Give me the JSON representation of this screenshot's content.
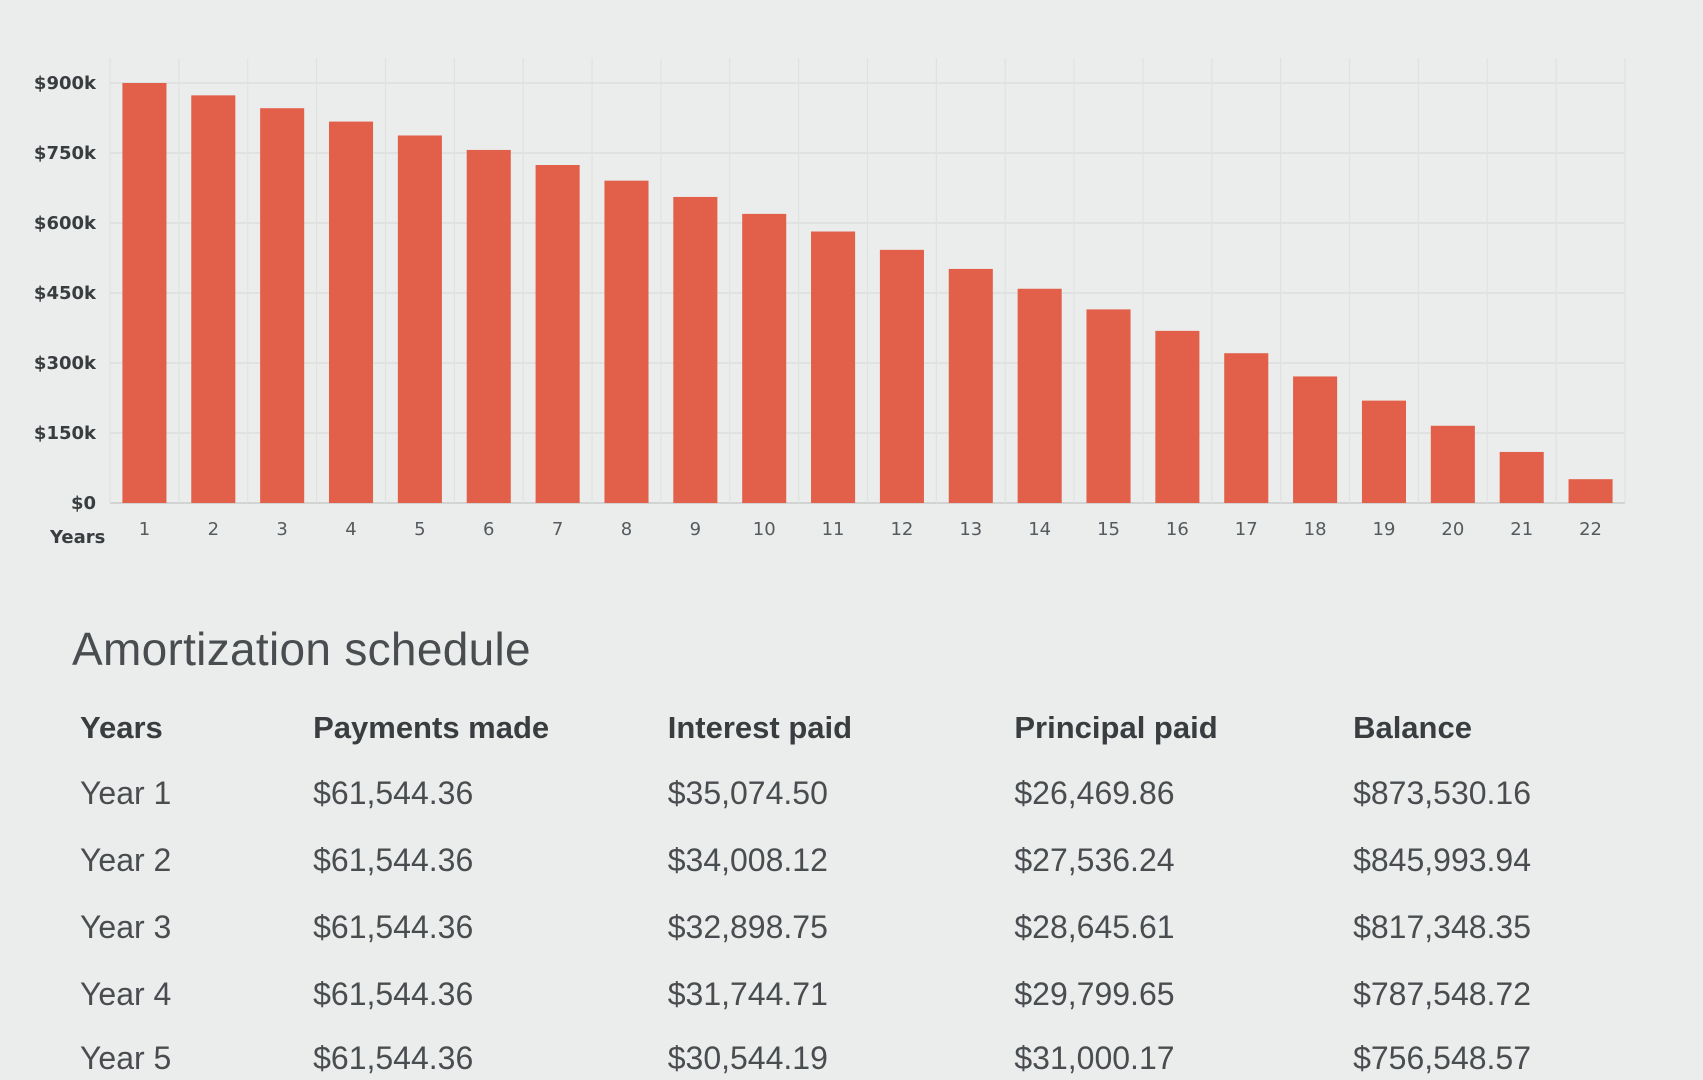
{
  "chart_data": {
    "type": "bar",
    "xlabel": "Years",
    "categories": [
      "1",
      "2",
      "3",
      "4",
      "5",
      "6",
      "7",
      "8",
      "9",
      "10",
      "11",
      "12",
      "13",
      "14",
      "15",
      "16",
      "17",
      "18",
      "19",
      "20",
      "21",
      "22"
    ],
    "values": [
      900000,
      873530,
      845994,
      817348,
      787549,
      756549,
      724300,
      690750,
      655850,
      619550,
      581780,
      542490,
      501620,
      459100,
      414870,
      368850,
      320980,
      271180,
      219370,
      165470,
      109400,
      51070
    ],
    "yticks": [
      "$0",
      "$150k",
      "$300k",
      "$450k",
      "$600k",
      "$750k",
      "$900k"
    ],
    "ylim": [
      0,
      900000
    ],
    "bar_color": "#e2604a",
    "grid": true
  },
  "schedule": {
    "title": "Amortization schedule",
    "headers": {
      "years": "Years",
      "payments": "Payments made",
      "interest": "Interest paid",
      "principal": "Principal paid",
      "balance": "Balance"
    },
    "rows": [
      {
        "year": "Year 1",
        "payments": "$61,544.36",
        "interest": "$35,074.50",
        "principal": "$26,469.86",
        "balance": "$873,530.16"
      },
      {
        "year": "Year 2",
        "payments": "$61,544.36",
        "interest": "$34,008.12",
        "principal": "$27,536.24",
        "balance": "$845,993.94"
      },
      {
        "year": "Year 3",
        "payments": "$61,544.36",
        "interest": "$32,898.75",
        "principal": "$28,645.61",
        "balance": "$817,348.35"
      },
      {
        "year": "Year 4",
        "payments": "$61,544.36",
        "interest": "$31,744.71",
        "principal": "$29,799.65",
        "balance": "$787,548.72"
      },
      {
        "year": "Year 5",
        "payments": "$61,544.36",
        "interest": "$30,544.19",
        "principal": "$31,000.17",
        "balance": "$756,548.57"
      }
    ]
  }
}
